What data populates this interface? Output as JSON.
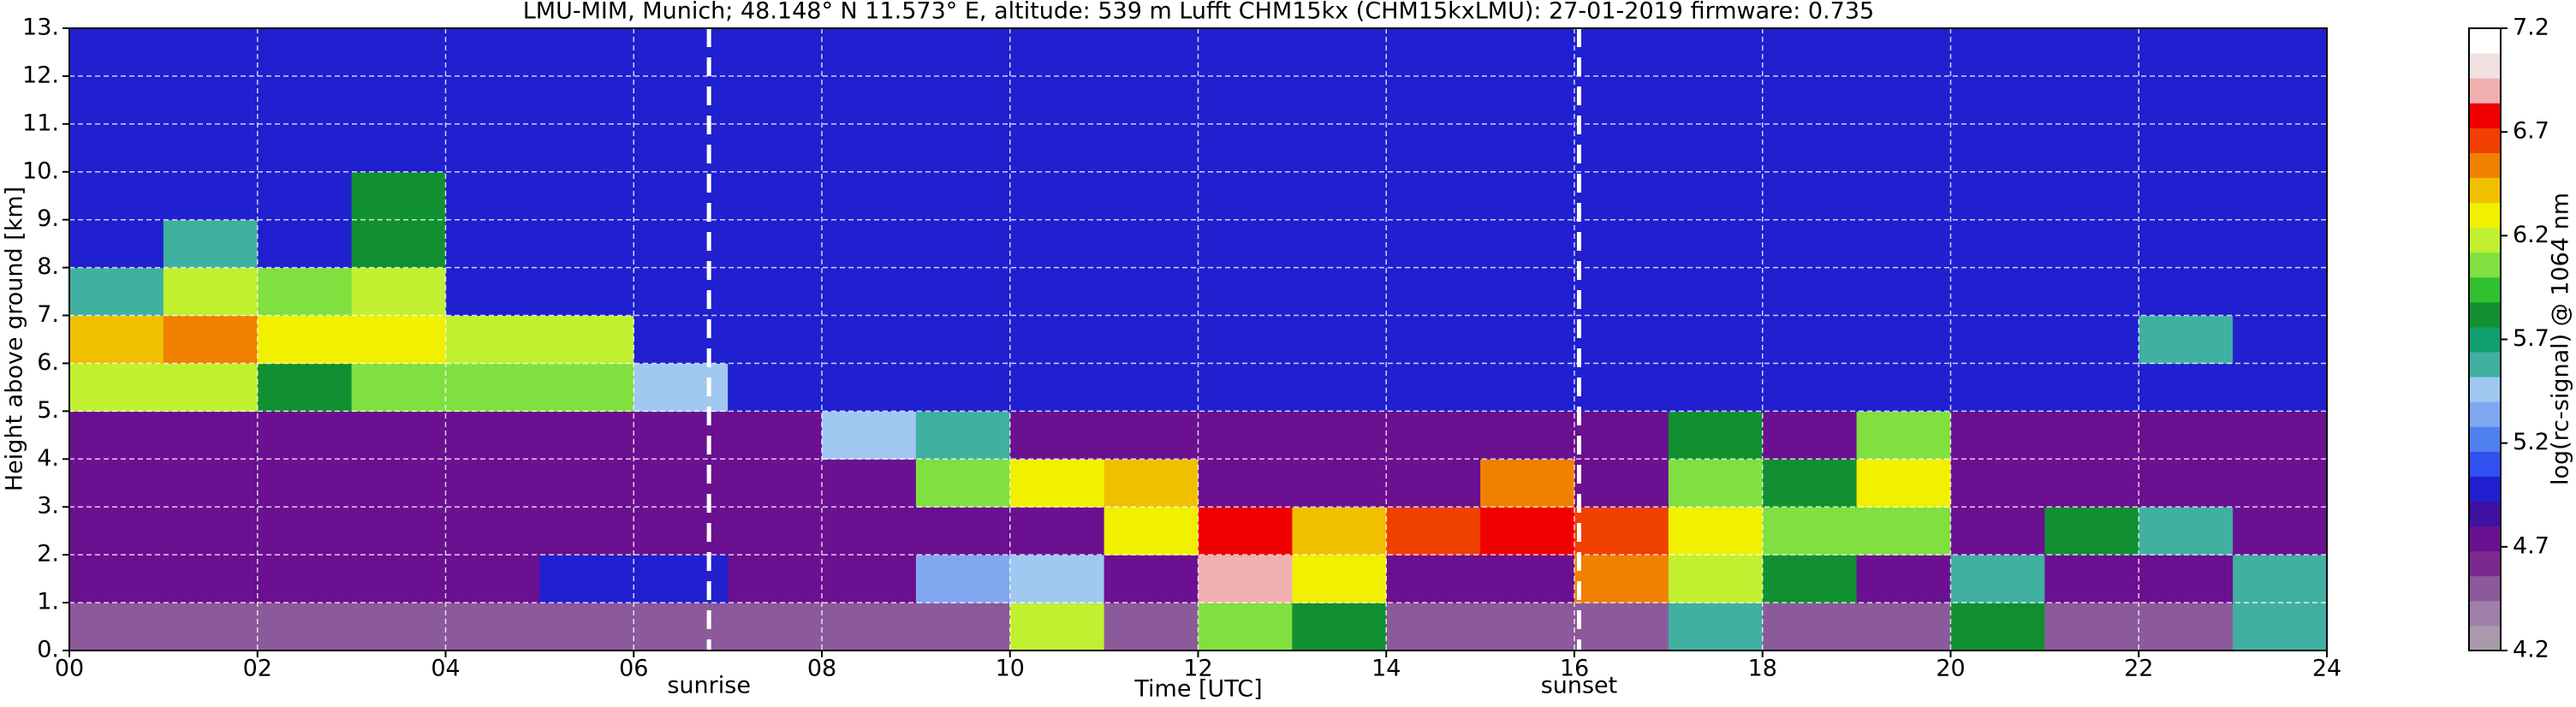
{
  "chart_data": {
    "type": "heatmap",
    "title": "LMU-MIM, Munich; 48.148° N 11.573° E, altitude: 539 m    Lufft CHM15kx (CHM15kxLMU): 27-01-2019    firmware: 0.735",
    "x_label": "Time [UTC]",
    "y_label": "Height above ground [km]",
    "colorbar_label": "log(rc-signal) @ 1064 nm",
    "xlim": [
      0,
      24
    ],
    "ylim": [
      0,
      13
    ],
    "xticks": [
      {
        "value": 0,
        "label": "00"
      },
      {
        "value": 2,
        "label": "02"
      },
      {
        "value": 4,
        "label": "04"
      },
      {
        "value": 6,
        "label": "06"
      },
      {
        "value": 8,
        "label": "08"
      },
      10,
      12,
      14,
      16,
      18,
      20,
      22,
      24
    ],
    "yticks": [
      {
        "value": 0,
        "label": "0."
      },
      {
        "value": 1,
        "label": "1."
      },
      {
        "value": 2,
        "label": "2."
      },
      {
        "value": 3,
        "label": "3."
      },
      {
        "value": 4,
        "label": "4."
      },
      {
        "value": 5,
        "label": "5."
      },
      {
        "value": 6,
        "label": "6."
      },
      {
        "value": 7,
        "label": "7."
      },
      {
        "value": 8,
        "label": "8."
      },
      {
        "value": 9,
        "label": "9."
      },
      {
        "value": 10,
        "label": "10."
      },
      {
        "value": 11,
        "label": "11."
      },
      {
        "value": 12,
        "label": "12."
      },
      {
        "value": 13,
        "label": "13."
      }
    ],
    "grid": true,
    "clim": [
      4.2,
      7.2
    ],
    "colorbar_ticks": [
      4.2,
      4.7,
      5.2,
      5.7,
      6.2,
      6.7,
      7.2
    ],
    "colormap": [
      "#a89aaa",
      "#a080a8",
      "#8c5a9a",
      "#7a2a8e",
      "#6a1090",
      "#4010a0",
      "#2020d0",
      "#3050f0",
      "#5080f0",
      "#80a8f0",
      "#a0c8f0",
      "#40b0a0",
      "#10a070",
      "#109030",
      "#30c030",
      "#80e040",
      "#c0f030",
      "#f0f000",
      "#f0c000",
      "#f08000",
      "#f04000",
      "#f00000",
      "#f0b0b0",
      "#f0e0e0",
      "#ffffff"
    ],
    "annotations": [
      {
        "text": "sunrise",
        "x": 6.8
      },
      {
        "text": "sunset",
        "x": 16.05
      }
    ],
    "z": [
      [
        4.5,
        4.5,
        4.5,
        4.5,
        4.5,
        4.5,
        4.5,
        4.5,
        4.5,
        4.5,
        6.2,
        4.5,
        6.0,
        5.8,
        4.5,
        4.5,
        4.5,
        5.6,
        4.5,
        4.5,
        5.8,
        4.5,
        4.5,
        5.6
      ],
      [
        4.8,
        4.8,
        4.8,
        4.8,
        4.8,
        5.0,
        5.0,
        4.8,
        4.8,
        5.3,
        5.4,
        4.8,
        6.9,
        6.3,
        4.8,
        4.8,
        6.5,
        6.2,
        5.8,
        4.8,
        5.6,
        4.8,
        4.8,
        5.6
      ],
      [
        4.8,
        4.8,
        4.8,
        4.8,
        4.8,
        4.8,
        4.8,
        4.8,
        4.8,
        4.8,
        4.8,
        6.3,
        6.8,
        6.4,
        6.7,
        6.8,
        6.7,
        6.3,
        6.0,
        6.0,
        4.8,
        5.8,
        5.6,
        4.8
      ],
      [
        4.8,
        4.8,
        4.8,
        4.8,
        4.8,
        4.8,
        4.8,
        4.8,
        4.8,
        6.0,
        6.3,
        6.4,
        4.8,
        4.8,
        4.8,
        6.6,
        4.8,
        6.0,
        5.8,
        6.3,
        4.8,
        4.8,
        4.8,
        4.8
      ],
      [
        4.8,
        4.8,
        4.8,
        4.8,
        4.8,
        4.8,
        4.8,
        4.8,
        5.4,
        5.6,
        4.8,
        4.8,
        4.8,
        4.8,
        4.8,
        4.8,
        4.8,
        5.8,
        4.8,
        6.0,
        4.8,
        4.8,
        4.8,
        4.8
      ],
      [
        6.2,
        6.2,
        5.8,
        6.0,
        6.0,
        6.0,
        5.4,
        5.0,
        5.0,
        5.0,
        5.0,
        5.0,
        5.0,
        5.0,
        5.0,
        5.0,
        5.0,
        5.0,
        5.0,
        5.0,
        5.0,
        5.0,
        5.0,
        5.0
      ],
      [
        6.4,
        6.5,
        6.3,
        6.3,
        6.2,
        6.2,
        5.0,
        5.0,
        5.0,
        5.0,
        5.0,
        5.0,
        5.0,
        5.0,
        5.0,
        5.0,
        5.0,
        5.0,
        5.0,
        5.0,
        5.0,
        5.0,
        5.6,
        5.0
      ],
      [
        5.6,
        6.2,
        6.0,
        6.2,
        5.0,
        5.0,
        5.0,
        5.0,
        5.0,
        5.0,
        5.0,
        5.0,
        5.0,
        5.0,
        5.0,
        5.0,
        5.0,
        5.0,
        5.0,
        5.0,
        5.0,
        5.0,
        5.0,
        5.0
      ],
      [
        5.0,
        5.6,
        5.0,
        5.8,
        5.0,
        5.0,
        5.0,
        5.0,
        5.0,
        5.0,
        5.0,
        5.0,
        5.0,
        5.0,
        5.0,
        5.0,
        5.0,
        5.0,
        5.0,
        5.0,
        5.0,
        5.0,
        5.0,
        5.0
      ],
      [
        5.0,
        5.0,
        5.0,
        5.8,
        5.0,
        5.0,
        5.0,
        5.0,
        5.0,
        5.0,
        5.0,
        5.0,
        5.0,
        5.0,
        5.0,
        5.0,
        5.0,
        5.0,
        5.0,
        5.0,
        5.0,
        5.0,
        5.0,
        5.0
      ],
      [
        5.0,
        5.0,
        5.0,
        5.0,
        5.0,
        5.0,
        5.0,
        5.0,
        5.0,
        5.0,
        5.0,
        5.0,
        5.0,
        5.0,
        5.0,
        5.0,
        5.0,
        5.0,
        5.0,
        5.0,
        5.0,
        5.0,
        5.0,
        5.0
      ],
      [
        5.0,
        5.0,
        5.0,
        5.0,
        5.0,
        5.0,
        5.0,
        5.0,
        5.0,
        5.0,
        5.0,
        5.0,
        5.0,
        5.0,
        5.0,
        5.0,
        5.0,
        5.0,
        5.0,
        5.0,
        5.0,
        5.0,
        5.0,
        5.0
      ],
      [
        5.0,
        5.0,
        5.0,
        5.0,
        5.0,
        5.0,
        5.0,
        5.0,
        5.0,
        5.0,
        5.0,
        5.0,
        5.0,
        5.0,
        5.0,
        5.0,
        5.0,
        5.0,
        5.0,
        5.0,
        5.0,
        5.0,
        5.0,
        5.0
      ]
    ]
  }
}
